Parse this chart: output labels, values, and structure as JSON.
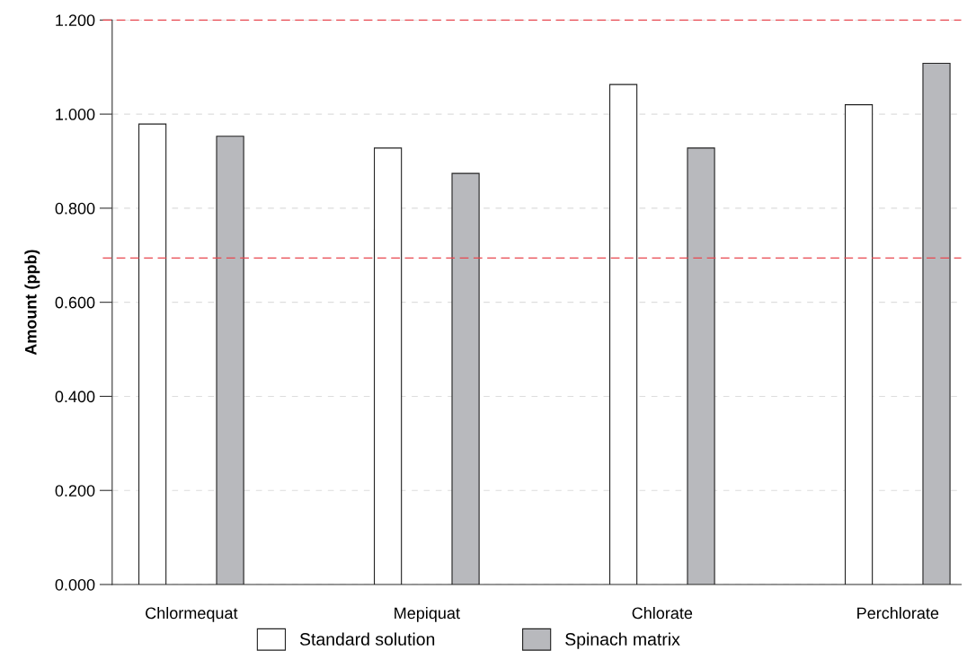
{
  "chart_data": {
    "type": "bar",
    "ylabel": "Amount (ppb)",
    "categories": [
      "Chlormequat",
      "Mepiquat",
      "Chlorate",
      "Perchlorate"
    ],
    "series": [
      {
        "name": "Standard solution",
        "color": "#ffffff",
        "values": [
          0.979,
          0.928,
          1.063,
          1.02
        ]
      },
      {
        "name": "Spinach matrix",
        "color": "#b8b9bd",
        "values": [
          0.953,
          0.874,
          0.928,
          1.108
        ]
      }
    ],
    "ylim": [
      0,
      1.2
    ],
    "yticks": [
      {
        "value": 0,
        "label": "0.000"
      },
      {
        "value": 0.2,
        "label": "0.200"
      },
      {
        "value": 0.4,
        "label": "0.400"
      },
      {
        "value": 0.6,
        "label": "0.600"
      },
      {
        "value": 0.8,
        "label": "0.800"
      },
      {
        "value": 1.0,
        "label": "1.000"
      },
      {
        "value": 1.2,
        "label": "1.200"
      }
    ],
    "ref_lines": [
      {
        "axis": "y",
        "value": 1.2,
        "color": "#e8474f",
        "line_style": "dashed"
      },
      {
        "axis": "y",
        "value": 0.694,
        "color": "#e8474f",
        "line_style": "dashed"
      }
    ],
    "grid": "y",
    "legend": "bottom"
  }
}
